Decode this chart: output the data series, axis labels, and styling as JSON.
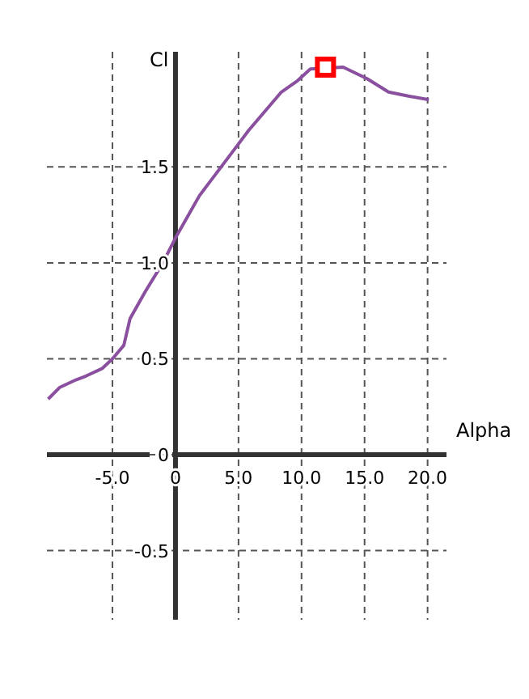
{
  "chart_data": {
    "type": "line",
    "xlabel": "Alpha",
    "ylabel": "Cl",
    "xlim": [
      -10.2,
      21.5
    ],
    "ylim": [
      -0.86,
      2.1
    ],
    "xticks": [
      {
        "value": -5,
        "label": "-5.0"
      },
      0,
      {
        "value": 5,
        "label": "5.0"
      },
      {
        "value": 10,
        "label": "10.0"
      },
      {
        "value": 15,
        "label": "15.0"
      },
      {
        "value": 20,
        "label": "20.0"
      }
    ],
    "yticks": [
      -0.5,
      0,
      0.5,
      {
        "value": 1,
        "label": "1.0"
      },
      1.5
    ],
    "grid": true,
    "line_style": "solid",
    "series": [
      {
        "type": "line",
        "color": "#8a4f9e",
        "marker": "none",
        "x": [
          -10.1,
          -9.2,
          -7.9,
          -7.1,
          -5.8,
          -5,
          -4.1,
          -3.6,
          -2.4,
          -1,
          0,
          1.9,
          5,
          5.8,
          7.1,
          8.4,
          9.7,
          10.7,
          13.3,
          15.2,
          16.9,
          18.4,
          20.1
        ],
        "values": [
          0.29,
          0.35,
          0.39,
          0.41,
          0.45,
          0.5,
          0.57,
          0.71,
          0.85,
          1,
          1.13,
          1.35,
          1.62,
          1.69,
          1.79,
          1.89,
          1.95,
          2.01,
          2.02,
          1.96,
          1.89,
          1.87,
          1.85
        ]
      },
      {
        "type": "scatter",
        "color": "#ff0000",
        "marker": "square",
        "x": [
          11.9
        ],
        "values": [
          2.02
        ]
      }
    ]
  }
}
